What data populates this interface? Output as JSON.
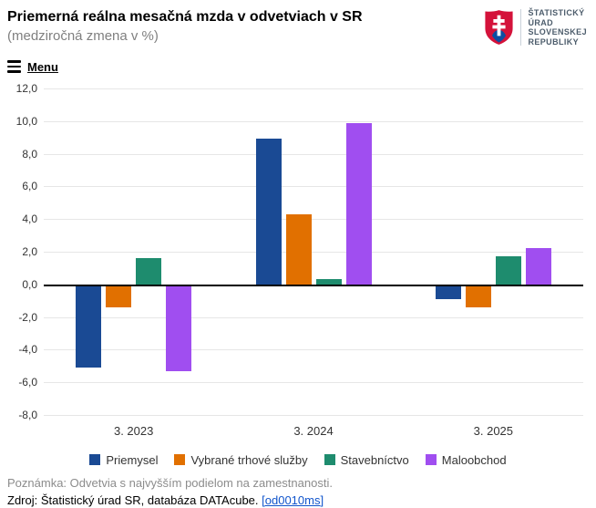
{
  "header": {
    "title": "Priemerná reálna mesačná mzda v odvetviach v SR",
    "subtitle": "(medziročná zmena v %)",
    "menu_label": "Menu",
    "logo": {
      "lines": [
        "ŠTATISTICKÝ",
        "ÚRAD",
        "SLOVENSKEJ",
        "REPUBLIKY"
      ]
    }
  },
  "chart_data": {
    "type": "bar",
    "categories": [
      "3. 2023",
      "3. 2024",
      "3. 2025"
    ],
    "series": [
      {
        "name": "Priemysel",
        "color": "#1a4a94",
        "values": [
          -5.1,
          8.9,
          -0.9
        ]
      },
      {
        "name": "Vybrané trhové služby",
        "color": "#e17000",
        "values": [
          -1.4,
          4.3,
          -1.4
        ]
      },
      {
        "name": "Stavebníctvo",
        "color": "#1e8c6e",
        "values": [
          1.6,
          0.3,
          1.7
        ]
      },
      {
        "name": "Maloobchod",
        "color": "#a04ef0",
        "values": [
          -5.3,
          9.9,
          2.2
        ]
      }
    ],
    "ylim": [
      -8,
      12
    ],
    "ytick_step": 2,
    "grid": true,
    "legend_position": "bottom",
    "xlabel": "",
    "ylabel": ""
  },
  "footer": {
    "note": "Poznámka: Odvetvia s najvyšším podielom na zamestnanosti.",
    "source_prefix": "Zdroj: Štatistický úrad SR, databáza DATAcube. ",
    "source_link": "[od0010ms]"
  }
}
